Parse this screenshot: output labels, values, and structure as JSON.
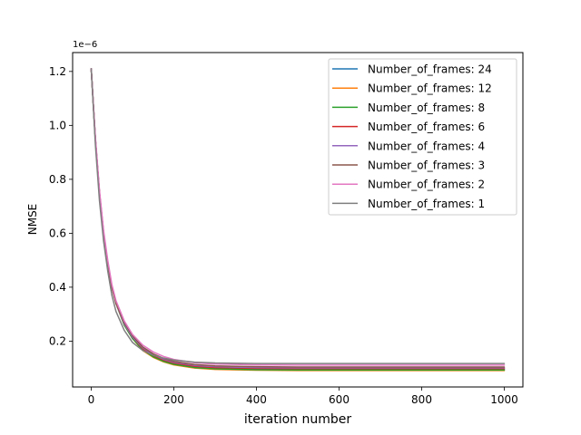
{
  "chart_data": {
    "type": "line",
    "title": "",
    "xlabel": "iteration number",
    "ylabel": "NMSE",
    "y_offset_label": "1e−6",
    "xlim": [
      -45,
      1045
    ],
    "ylim": [
      0.03,
      1.27
    ],
    "xticks": [
      0,
      200,
      400,
      600,
      800,
      1000
    ],
    "xtick_labels": [
      "0",
      "200",
      "400",
      "600",
      "800",
      "1000"
    ],
    "yticks": [
      0.2,
      0.4,
      0.6,
      0.8,
      1.0,
      1.2
    ],
    "ytick_labels": [
      "0.2",
      "0.4",
      "0.6",
      "0.8",
      "1.0",
      "1.2"
    ],
    "grid": false,
    "legend_position": "top-right",
    "x": [
      0,
      10,
      20,
      30,
      40,
      50,
      60,
      80,
      100,
      125,
      150,
      175,
      200,
      250,
      300,
      400,
      500,
      600,
      700,
      800,
      900,
      1000
    ],
    "series": [
      {
        "name": "Number_of_frames: 24",
        "color": "#1f77b4",
        "values": [
          1.21,
          0.95,
          0.75,
          0.6,
          0.49,
          0.4,
          0.34,
          0.26,
          0.21,
          0.17,
          0.145,
          0.128,
          0.117,
          0.105,
          0.1,
          0.097,
          0.096,
          0.096,
          0.096,
          0.096,
          0.096,
          0.096
        ]
      },
      {
        "name": "Number_of_frames: 12",
        "color": "#ff7f0e",
        "values": [
          1.21,
          0.95,
          0.75,
          0.6,
          0.49,
          0.4,
          0.34,
          0.26,
          0.21,
          0.165,
          0.14,
          0.123,
          0.112,
          0.1,
          0.095,
          0.092,
          0.091,
          0.091,
          0.091,
          0.091,
          0.091,
          0.091
        ]
      },
      {
        "name": "Number_of_frames: 8",
        "color": "#2ca02c",
        "values": [
          1.21,
          0.95,
          0.75,
          0.6,
          0.49,
          0.4,
          0.34,
          0.26,
          0.21,
          0.167,
          0.142,
          0.125,
          0.114,
          0.102,
          0.097,
          0.094,
          0.093,
          0.093,
          0.093,
          0.093,
          0.093,
          0.093
        ]
      },
      {
        "name": "Number_of_frames: 6",
        "color": "#d62728",
        "values": [
          1.21,
          0.95,
          0.75,
          0.6,
          0.49,
          0.4,
          0.34,
          0.265,
          0.215,
          0.172,
          0.147,
          0.13,
          0.119,
          0.107,
          0.102,
          0.099,
          0.098,
          0.098,
          0.098,
          0.098,
          0.098,
          0.098
        ]
      },
      {
        "name": "Number_of_frames: 4",
        "color": "#9467bd",
        "values": [
          1.21,
          0.95,
          0.75,
          0.6,
          0.49,
          0.4,
          0.34,
          0.265,
          0.215,
          0.175,
          0.15,
          0.133,
          0.122,
          0.11,
          0.105,
          0.102,
          0.101,
          0.101,
          0.101,
          0.101,
          0.101,
          0.101
        ]
      },
      {
        "name": "Number_of_frames: 3",
        "color": "#8c564b",
        "values": [
          1.21,
          0.95,
          0.75,
          0.6,
          0.49,
          0.4,
          0.34,
          0.27,
          0.22,
          0.178,
          0.153,
          0.136,
          0.125,
          0.113,
          0.108,
          0.105,
          0.104,
          0.104,
          0.104,
          0.104,
          0.104,
          0.104
        ]
      },
      {
        "name": "Number_of_frames: 2",
        "color": "#e377c2",
        "values": [
          1.21,
          0.96,
          0.76,
          0.61,
          0.5,
          0.41,
          0.35,
          0.275,
          0.225,
          0.185,
          0.16,
          0.143,
          0.132,
          0.12,
          0.115,
          0.112,
          0.111,
          0.111,
          0.111,
          0.111,
          0.111,
          0.111
        ]
      },
      {
        "name": "Number_of_frames: 1",
        "color": "#7f7f7f",
        "values": [
          1.21,
          0.93,
          0.72,
          0.57,
          0.46,
          0.37,
          0.31,
          0.24,
          0.195,
          0.165,
          0.148,
          0.137,
          0.13,
          0.122,
          0.119,
          0.117,
          0.117,
          0.117,
          0.117,
          0.117,
          0.117,
          0.117
        ]
      }
    ]
  }
}
